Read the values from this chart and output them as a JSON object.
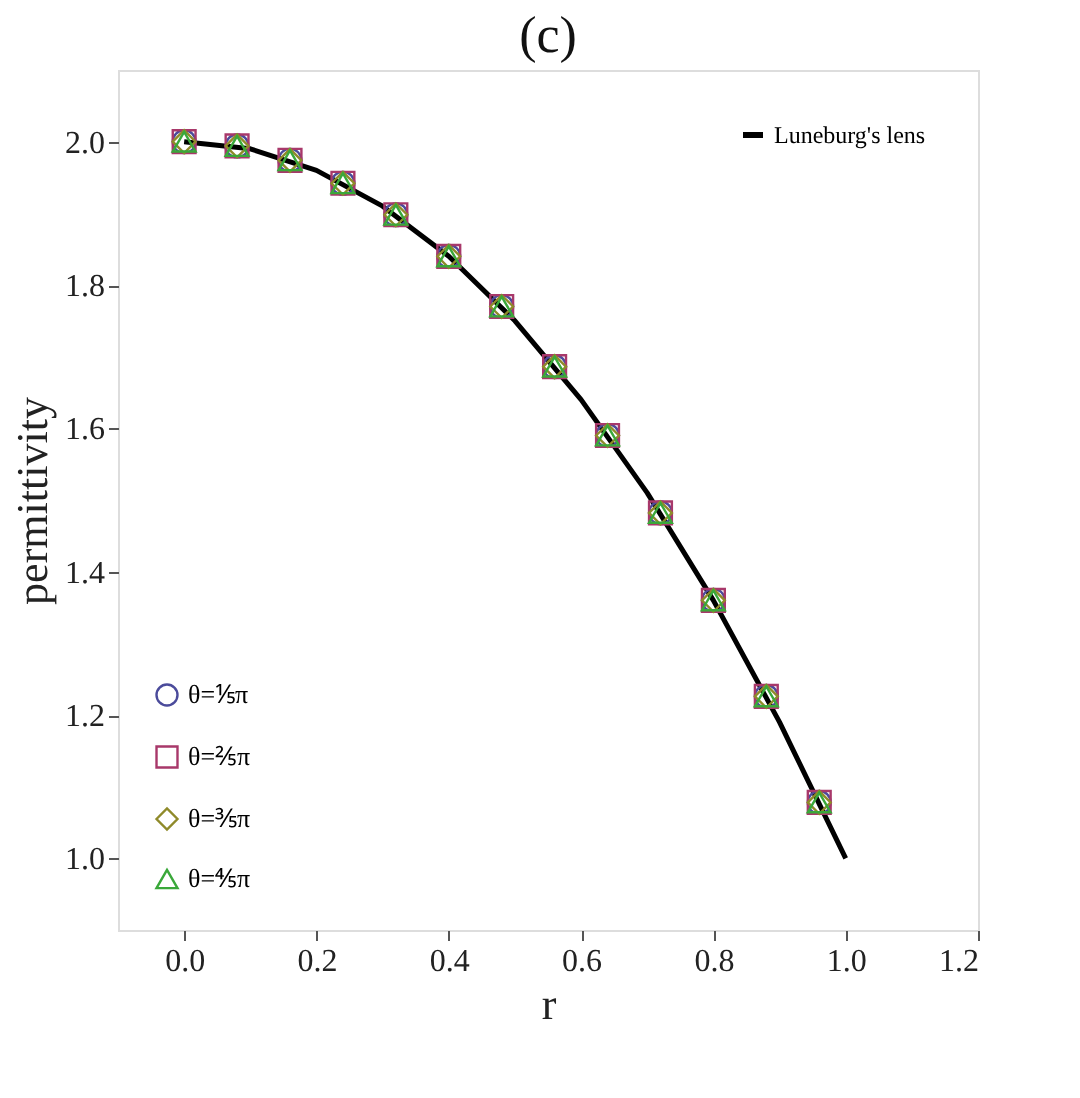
{
  "chart_data": {
    "type": "scatter",
    "title": "(c)",
    "xlabel": "r",
    "ylabel": "permittivity",
    "xlim": [
      -0.1,
      1.2
    ],
    "xticks": [
      {
        "value": 0.0,
        "label": "0.0"
      },
      0.2,
      0.4,
      0.6,
      0.8,
      {
        "value": 1.0,
        "label": "1.0"
      },
      1.2
    ],
    "ylim": [
      0.9,
      2.1
    ],
    "yticks": [
      {
        "value": 1.0,
        "label": "1.0"
      },
      1.2,
      1.4,
      1.6,
      1.8,
      {
        "value": 2.0,
        "label": "2.0"
      }
    ],
    "grid": false,
    "legend": "bottom left",
    "x": [
      0,
      0.08,
      0.16,
      0.24,
      0.32,
      0.4,
      0.48,
      0.56,
      0.64,
      0.72,
      0.8,
      0.88,
      0.96
    ],
    "series": [
      {
        "name": "θ=⅕π",
        "color": "#4b4b9b",
        "marker": "circle",
        "values": [
          2.0,
          1.994,
          1.974,
          1.942,
          1.898,
          1.84,
          1.77,
          1.686,
          1.59,
          1.482,
          1.36,
          1.226,
          1.078
        ]
      },
      {
        "name": "θ=⅖π",
        "color": "#a8386a",
        "marker": "square",
        "values": [
          2.0,
          1.994,
          1.974,
          1.942,
          1.898,
          1.84,
          1.77,
          1.686,
          1.59,
          1.482,
          1.36,
          1.226,
          1.078
        ]
      },
      {
        "name": "θ=⅗π",
        "color": "#8f8a2a",
        "marker": "diamond",
        "values": [
          2.0,
          1.994,
          1.974,
          1.942,
          1.898,
          1.84,
          1.77,
          1.686,
          1.59,
          1.482,
          1.36,
          1.226,
          1.078
        ]
      },
      {
        "name": "θ=⅘π",
        "color": "#3aa83a",
        "marker": "triangle",
        "values": [
          2.0,
          1.994,
          1.974,
          1.942,
          1.898,
          1.84,
          1.77,
          1.686,
          1.59,
          1.482,
          1.36,
          1.226,
          1.078
        ]
      },
      {
        "name": "Luneburg's lens",
        "type": "line",
        "color": "#000000",
        "line_style": "solid",
        "x": [
          0,
          0.1,
          0.2,
          0.3,
          0.4,
          0.5,
          0.6,
          0.7,
          0.8,
          0.9,
          1.0
        ],
        "values": [
          2.0,
          1.99,
          1.96,
          1.91,
          1.84,
          1.75,
          1.64,
          1.51,
          1.36,
          1.19,
          1.0
        ]
      }
    ]
  }
}
